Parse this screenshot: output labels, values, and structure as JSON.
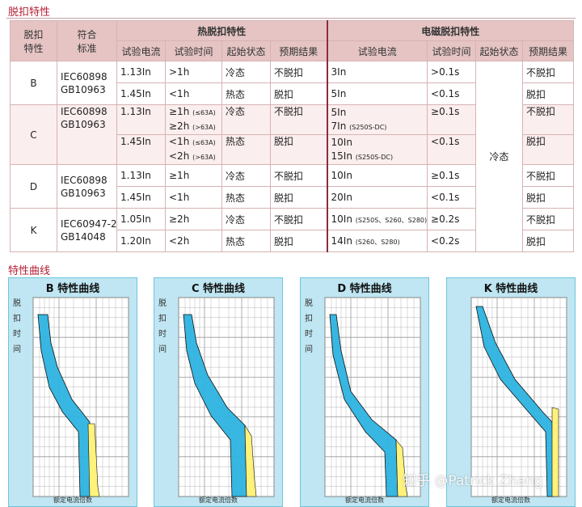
{
  "sections": {
    "table_title": "脱扣特性",
    "curves_title": "特性曲线"
  },
  "table": {
    "head": {
      "type1": "脱扣",
      "type2": "特性",
      "std1": "符合",
      "std2": "标准",
      "thermal": "热脱扣特性",
      "magnetic": "电磁脱扣特性",
      "cols": [
        "试验电流",
        "试验时间",
        "起始状态",
        "预期结果",
        "试验电流",
        "试验时间",
        "起始状态",
        "预期结果"
      ]
    },
    "cold_state": "冷态",
    "B": {
      "type": "B",
      "std1": "IEC60898",
      "std2": "GB10963",
      "r1": {
        "i": "1.13In",
        "t": ">1h",
        "s": "冷态",
        "r": "不脱扣",
        "mi": "3In",
        "mt": ">0.1s",
        "mr": "不脱扣"
      },
      "r2": {
        "i": "1.45In",
        "t": "<1h",
        "s": "热态",
        "r": "脱扣",
        "mi": "5In",
        "mt": "<0.1s",
        "mr": "脱扣"
      }
    },
    "C": {
      "type": "C",
      "std1": "IEC60898",
      "std2": "GB10963",
      "r1": {
        "i": "1.13In",
        "t1": "≥1h",
        "t1s": "(≤63A)",
        "t2": "≥2h",
        "t2s": "(>63A)",
        "s": "冷态",
        "r": "不脱扣",
        "mi1": "5In",
        "mi2": "7In",
        "mi2s": "(S250S-DC)",
        "mt": "≥0.1s",
        "mr": "不脱扣"
      },
      "r2": {
        "i": "1.45In",
        "t1": "<1h",
        "t1s": "(≤63A)",
        "t2": "<2h",
        "t2s": "(>63A)",
        "s": "热态",
        "r": "脱扣",
        "mi1": "10In",
        "mi2": "15In",
        "mi2s": "(S250S-DC)",
        "mt": "<0.1s",
        "mr": "脱扣"
      }
    },
    "D": {
      "type": "D",
      "std1": "IEC60898",
      "std2": "GB10963",
      "r1": {
        "i": "1.13In",
        "t": "≥1h",
        "s": "冷态",
        "r": "不脱扣",
        "mi": "10In",
        "mt": "≥0.1s",
        "mr": "不脱扣"
      },
      "r2": {
        "i": "1.45In",
        "t": "<1h",
        "s": "热态",
        "r": "脱扣",
        "mi": "20In",
        "mt": "<0.1s",
        "mr": "脱扣"
      }
    },
    "K": {
      "type": "K",
      "std1": "IEC60947-2",
      "std2": "GB14048",
      "r1": {
        "i": "1.05In",
        "t": "≥2h",
        "s": "冷态",
        "r": "不脱扣",
        "mi": "10In",
        "mis": "(S250S、S260、S280)",
        "mt": "≥0.2s",
        "mr": "不脱扣"
      },
      "r2": {
        "i": "1.20In",
        "t": "<2h",
        "s": "热态",
        "r": "脱扣",
        "mi": "14In",
        "mis": "(S260、S280)",
        "mt": "<0.2s",
        "mr": "脱扣"
      }
    }
  },
  "curves": [
    {
      "title": "B 特性曲线",
      "vertical": "脱扣时间",
      "xlabel": "额定电流倍数",
      "band_color": "#2cb3e0",
      "yellow_color": "#fff27a"
    },
    {
      "title": "C 特性曲线",
      "vertical": "脱扣时间",
      "xlabel": "额定电流倍数",
      "band_color": "#2cb3e0",
      "yellow_color": "#fff27a"
    },
    {
      "title": "D 特性曲线",
      "vertical": "脱扣时间",
      "xlabel": "额定电流倍数",
      "band_color": "#2cb3e0",
      "yellow_color": "#fff27a"
    },
    {
      "title": "K 特性曲线",
      "vertical": "",
      "xlabel": "额定电流倍数",
      "band_color": "#2cb3e0",
      "yellow_color": "#fff27a"
    }
  ],
  "watermark": "知乎 @Patrick Zhang"
}
